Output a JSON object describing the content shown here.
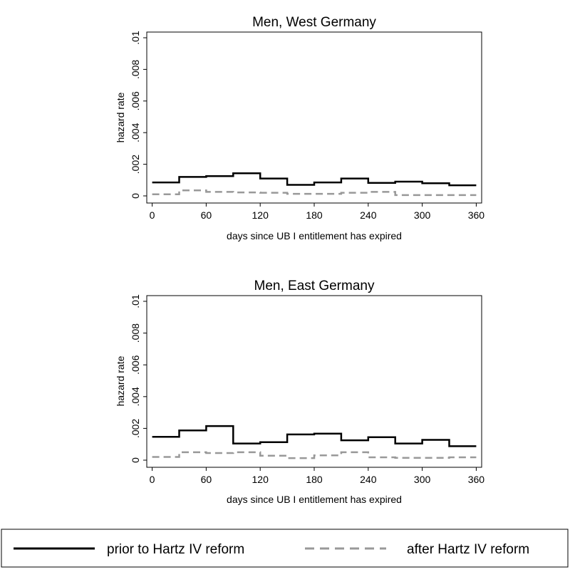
{
  "legend": {
    "placement": "bottom",
    "entries": [
      {
        "label": "prior to Hartz IV reform",
        "color": "#000000",
        "style": "solid"
      },
      {
        "label": "after Hartz IV reform",
        "color": "#999999",
        "style": "dashed"
      }
    ]
  },
  "chart_data": [
    {
      "type": "line",
      "title": "Men, West Germany",
      "xlabel": "days since UB I entitlement has expired",
      "ylabel": "hazard rate",
      "xlim": [
        -6,
        366
      ],
      "ylim": [
        0,
        0.01
      ],
      "xticks": [
        0,
        60,
        120,
        180,
        240,
        300,
        360
      ],
      "xtick_labels": [
        "0",
        "60",
        "120",
        "180",
        "240",
        "300",
        "360"
      ],
      "yticks": [
        0,
        0.002,
        0.004,
        0.006,
        0.008,
        0.01
      ],
      "ytick_labels": [
        "0",
        ".002",
        ".004",
        ".006",
        ".008",
        ".01"
      ],
      "grid": false,
      "x": [
        0,
        30,
        60,
        90,
        120,
        150,
        180,
        210,
        240,
        270,
        300,
        330
      ],
      "x_end": 360,
      "series": [
        {
          "name": "prior to Hartz IV reform",
          "color": "#000000",
          "style": "solid",
          "values": [
            0.00085,
            0.0012,
            0.00125,
            0.00143,
            0.0011,
            0.0007,
            0.00085,
            0.0011,
            0.00082,
            0.0009,
            0.0008,
            0.00067
          ]
        },
        {
          "name": "after Hartz IV reform",
          "color": "#999999",
          "style": "dashed",
          "values": [
            0.0001,
            0.00035,
            0.00025,
            0.00022,
            0.0002,
            0.00013,
            0.00013,
            0.0002,
            0.00025,
            5e-05,
            5e-05,
            5e-05
          ]
        }
      ]
    },
    {
      "type": "line",
      "title": "Men, East Germany",
      "xlabel": "days since UB I entitlement has expired",
      "ylabel": "hazard rate",
      "xlim": [
        -6,
        366
      ],
      "ylim": [
        0,
        0.01
      ],
      "xticks": [
        0,
        60,
        120,
        180,
        240,
        300,
        360
      ],
      "xtick_labels": [
        "0",
        "60",
        "120",
        "180",
        "240",
        "300",
        "360"
      ],
      "yticks": [
        0,
        0.002,
        0.004,
        0.006,
        0.008,
        0.01
      ],
      "ytick_labels": [
        "0",
        ".002",
        ".004",
        ".006",
        ".008",
        ".01"
      ],
      "grid": false,
      "x": [
        0,
        30,
        60,
        90,
        120,
        150,
        180,
        210,
        240,
        270,
        300,
        330
      ],
      "x_end": 360,
      "series": [
        {
          "name": "prior to Hartz IV reform",
          "color": "#000000",
          "style": "solid",
          "values": [
            0.00147,
            0.00187,
            0.00215,
            0.00105,
            0.00113,
            0.00162,
            0.00167,
            0.00125,
            0.00145,
            0.00105,
            0.00128,
            0.00088
          ]
        },
        {
          "name": "after Hartz IV reform",
          "color": "#999999",
          "style": "dashed",
          "values": [
            0.0002,
            0.0005,
            0.00045,
            0.0005,
            0.00028,
            0.00013,
            0.0003,
            0.0005,
            0.00018,
            0.00015,
            0.00015,
            0.00018
          ]
        }
      ]
    }
  ]
}
